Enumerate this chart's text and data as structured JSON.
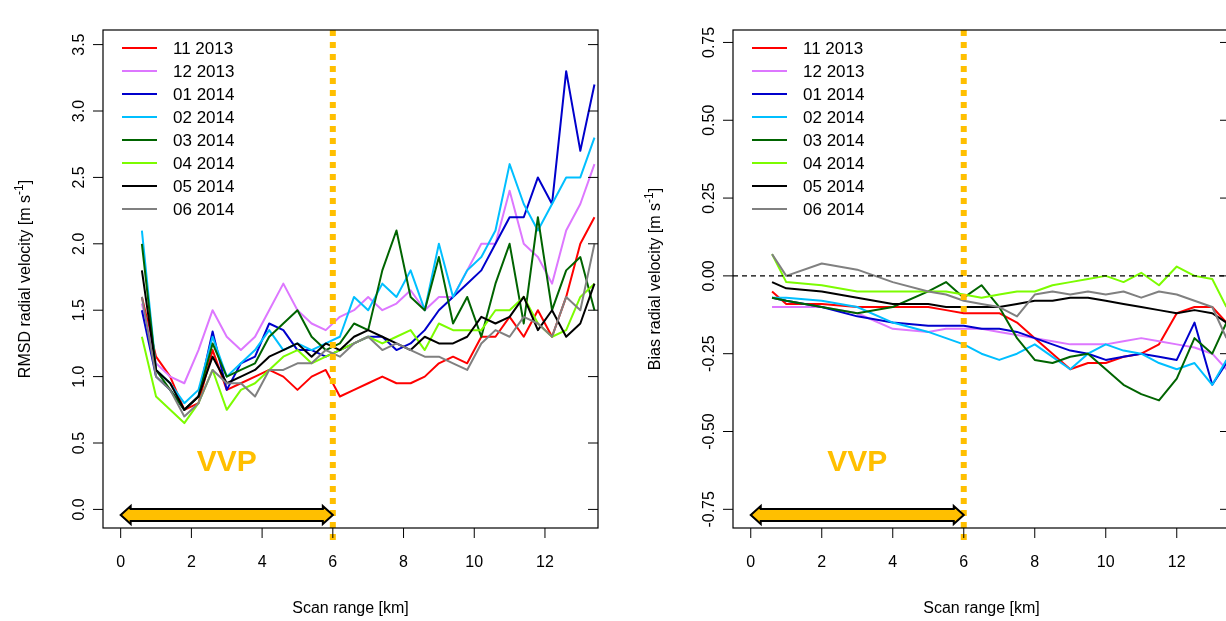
{
  "chart_data": [
    {
      "type": "line",
      "xlabel": "Scan range [km]",
      "ylabel": "RMSD radial velocity [m s$^{-1}$]",
      "xlim": [
        -0.5,
        13.5
      ],
      "ylim": [
        -0.14,
        3.61
      ],
      "xticks": [
        0,
        2,
        4,
        6,
        8,
        10,
        12
      ],
      "yticks": [
        {
          "value": 0,
          "label": "0.0"
        },
        {
          "value": 0.5,
          "label": "0.5"
        },
        {
          "value": 1,
          "label": "1.0"
        },
        {
          "value": 1.5,
          "label": "1.5"
        },
        {
          "value": 2,
          "label": "2.0"
        },
        {
          "value": 2.5,
          "label": "2.5"
        },
        {
          "value": 3,
          "label": "3.0"
        },
        {
          "value": 3.5,
          "label": "3.5"
        }
      ],
      "grid": false,
      "legend": "top left",
      "line_style": "solid",
      "marker": "none",
      "ref_lines": [
        {
          "axis": "x",
          "value": 6,
          "color": "#ffbf00",
          "line_style": "dotted"
        }
      ],
      "annotations": [
        "VVP"
      ],
      "x": [
        0.6,
        1.0,
        1.4,
        1.8,
        2.2,
        2.6,
        3.0,
        3.4,
        3.8,
        4.2,
        4.6,
        5.0,
        5.4,
        5.8,
        6.2,
        6.6,
        7.0,
        7.4,
        7.8,
        8.2,
        8.6,
        9.0,
        9.4,
        9.8,
        10.2,
        10.6,
        11.0,
        11.4,
        11.8,
        12.2,
        12.6,
        13.0,
        13.4
      ],
      "series": [
        {
          "name": "11 2013",
          "color": "#ff0000",
          "values": [
            1.6,
            1.15,
            1.0,
            0.75,
            0.8,
            1.2,
            0.9,
            0.95,
            1.0,
            1.05,
            1.0,
            0.9,
            1.0,
            1.05,
            0.85,
            0.9,
            0.95,
            1.0,
            0.95,
            0.95,
            1.0,
            1.1,
            1.15,
            1.1,
            1.3,
            1.3,
            1.45,
            1.3,
            1.5,
            1.3,
            1.6,
            2.0,
            2.2
          ]
        },
        {
          "name": "12 2013",
          "color": "#dd77ff",
          "values": [
            1.55,
            1.1,
            1.0,
            0.95,
            1.2,
            1.5,
            1.3,
            1.2,
            1.3,
            1.5,
            1.7,
            1.5,
            1.4,
            1.35,
            1.45,
            1.5,
            1.6,
            1.5,
            1.55,
            1.65,
            1.5,
            1.6,
            1.6,
            1.8,
            2.0,
            2.0,
            2.4,
            2.0,
            1.9,
            1.7,
            2.1,
            2.3,
            2.6
          ]
        },
        {
          "name": "01 2014",
          "color": "#0000cc",
          "values": [
            1.5,
            1.0,
            0.9,
            0.75,
            0.85,
            1.34,
            0.9,
            1.1,
            1.15,
            1.4,
            1.35,
            1.2,
            1.2,
            1.15,
            1.2,
            1.25,
            1.3,
            1.3,
            1.2,
            1.25,
            1.35,
            1.5,
            1.6,
            1.7,
            1.8,
            2.0,
            2.2,
            2.2,
            2.5,
            2.3,
            3.3,
            2.7,
            3.2
          ]
        },
        {
          "name": "02 2014",
          "color": "#00bfff",
          "values": [
            2.1,
            1.05,
            0.95,
            0.8,
            0.9,
            1.3,
            1.0,
            1.1,
            1.2,
            1.35,
            1.2,
            1.25,
            1.2,
            1.25,
            1.3,
            1.6,
            1.5,
            1.7,
            1.6,
            1.8,
            1.5,
            2.0,
            1.6,
            1.8,
            1.9,
            2.1,
            2.6,
            2.3,
            2.1,
            2.3,
            2.5,
            2.5,
            2.8
          ]
        },
        {
          "name": "03 2014",
          "color": "#006400",
          "values": [
            2.0,
            1.05,
            0.9,
            0.75,
            0.85,
            1.25,
            1.0,
            1.05,
            1.1,
            1.3,
            1.4,
            1.5,
            1.3,
            1.2,
            1.25,
            1.4,
            1.35,
            1.8,
            2.1,
            1.6,
            1.5,
            1.9,
            1.4,
            1.6,
            1.3,
            1.7,
            2.0,
            1.4,
            2.2,
            1.5,
            1.8,
            1.9,
            1.5
          ]
        },
        {
          "name": "04 2014",
          "color": "#7cfc00",
          "values": [
            1.3,
            0.85,
            0.75,
            0.65,
            0.8,
            1.05,
            0.75,
            0.9,
            0.95,
            1.05,
            1.15,
            1.2,
            1.1,
            1.15,
            1.2,
            1.25,
            1.3,
            1.25,
            1.3,
            1.35,
            1.2,
            1.4,
            1.35,
            1.35,
            1.35,
            1.5,
            1.5,
            1.6,
            1.4,
            1.3,
            1.35,
            1.6,
            1.7
          ]
        },
        {
          "name": "05 2014",
          "color": "#000000",
          "values": [
            1.8,
            1.05,
            0.95,
            0.75,
            0.85,
            1.15,
            0.95,
            1.0,
            1.05,
            1.15,
            1.2,
            1.25,
            1.15,
            1.25,
            1.2,
            1.3,
            1.35,
            1.3,
            1.25,
            1.2,
            1.3,
            1.25,
            1.25,
            1.3,
            1.45,
            1.4,
            1.45,
            1.6,
            1.35,
            1.5,
            1.3,
            1.4,
            1.7
          ]
        },
        {
          "name": "06 2014",
          "color": "#808080",
          "values": [
            1.6,
            1.0,
            0.9,
            0.7,
            0.8,
            1.05,
            0.95,
            0.95,
            0.85,
            1.05,
            1.05,
            1.1,
            1.1,
            1.2,
            1.15,
            1.25,
            1.3,
            1.2,
            1.25,
            1.2,
            1.15,
            1.15,
            1.1,
            1.05,
            1.25,
            1.35,
            1.3,
            1.45,
            1.4,
            1.3,
            1.6,
            1.5,
            2.0
          ]
        }
      ]
    },
    {
      "type": "line",
      "xlabel": "Scan range [km]",
      "ylabel": "Bias radial velocity [m s$^{-1}$]",
      "xlim": [
        -0.5,
        13.5
      ],
      "ylim": [
        -0.81,
        0.79
      ],
      "xticks": [
        0,
        2,
        4,
        6,
        8,
        10,
        12
      ],
      "yticks": [
        {
          "value": -0.75,
          "label": "-0.75"
        },
        {
          "value": -0.5,
          "label": "-0.50"
        },
        {
          "value": -0.25,
          "label": "-0.25"
        },
        {
          "value": 0,
          "label": "0.00"
        },
        {
          "value": 0.25,
          "label": "0.25"
        },
        {
          "value": 0.5,
          "label": "0.50"
        },
        {
          "value": 0.75,
          "label": "0.75"
        }
      ],
      "grid": false,
      "legend": "top left",
      "line_style": "solid",
      "marker": "none",
      "ref_lines": [
        {
          "axis": "x",
          "value": 6,
          "color": "#ffbf00",
          "line_style": "dotted"
        },
        {
          "axis": "y",
          "value": 0,
          "color": "#000000",
          "line_style": "dashed"
        }
      ],
      "annotations": [
        "VVP"
      ],
      "x": [
        0.6,
        1,
        2,
        3,
        4,
        5,
        5.5,
        6,
        6.5,
        7,
        7.5,
        8,
        8.5,
        9,
        9.5,
        10,
        10.5,
        11,
        11.5,
        12,
        12.5,
        13,
        13.4
      ],
      "series": [
        {
          "name": "11 2013",
          "color": "#ff0000",
          "values": [
            -0.05,
            -0.09,
            -0.09,
            -0.1,
            -0.1,
            -0.1,
            -0.11,
            -0.12,
            -0.12,
            -0.12,
            -0.15,
            -0.2,
            -0.25,
            -0.3,
            -0.28,
            -0.28,
            -0.26,
            -0.25,
            -0.22,
            -0.12,
            -0.1,
            -0.1,
            -0.15
          ]
        },
        {
          "name": "12 2013",
          "color": "#dd77ff",
          "values": [
            -0.1,
            -0.1,
            -0.1,
            -0.12,
            -0.17,
            -0.18,
            -0.17,
            -0.17,
            -0.17,
            -0.18,
            -0.19,
            -0.2,
            -0.21,
            -0.22,
            -0.22,
            -0.22,
            -0.21,
            -0.2,
            -0.21,
            -0.22,
            -0.23,
            -0.25,
            -0.3
          ]
        },
        {
          "name": "01 2014",
          "color": "#0000cc",
          "values": [
            -0.07,
            -0.08,
            -0.1,
            -0.13,
            -0.15,
            -0.16,
            -0.16,
            -0.16,
            -0.17,
            -0.17,
            -0.18,
            -0.2,
            -0.22,
            -0.24,
            -0.25,
            -0.27,
            -0.26,
            -0.25,
            -0.26,
            -0.27,
            -0.15,
            -0.35,
            -0.28
          ]
        },
        {
          "name": "02 2014",
          "color": "#00bfff",
          "values": [
            -0.07,
            -0.07,
            -0.08,
            -0.1,
            -0.15,
            -0.18,
            -0.2,
            -0.22,
            -0.25,
            -0.27,
            -0.25,
            -0.22,
            -0.26,
            -0.3,
            -0.25,
            -0.22,
            -0.24,
            -0.25,
            -0.28,
            -0.3,
            -0.28,
            -0.35,
            -0.27
          ]
        },
        {
          "name": "03 2014",
          "color": "#006400",
          "values": [
            -0.07,
            -0.08,
            -0.1,
            -0.12,
            -0.1,
            -0.05,
            -0.02,
            -0.07,
            -0.03,
            -0.1,
            -0.2,
            -0.27,
            -0.28,
            -0.26,
            -0.25,
            -0.3,
            -0.35,
            -0.38,
            -0.4,
            -0.33,
            -0.2,
            -0.25,
            -0.15
          ]
        },
        {
          "name": "04 2014",
          "color": "#7cfc00",
          "values": [
            0.07,
            -0.02,
            -0.03,
            -0.05,
            -0.05,
            -0.05,
            -0.05,
            -0.06,
            -0.07,
            -0.06,
            -0.05,
            -0.05,
            -0.03,
            -0.02,
            -0.01,
            0.0,
            -0.02,
            0.01,
            -0.03,
            0.03,
            0.0,
            -0.01,
            -0.1
          ]
        },
        {
          "name": "05 2014",
          "color": "#000000",
          "values": [
            -0.02,
            -0.04,
            -0.05,
            -0.07,
            -0.09,
            -0.09,
            -0.1,
            -0.1,
            -0.1,
            -0.1,
            -0.09,
            -0.08,
            -0.08,
            -0.07,
            -0.07,
            -0.08,
            -0.09,
            -0.1,
            -0.11,
            -0.12,
            -0.11,
            -0.12,
            -0.15
          ]
        },
        {
          "name": "06 2014",
          "color": "#808080",
          "values": [
            0.07,
            0.0,
            0.04,
            0.02,
            -0.02,
            -0.05,
            -0.06,
            -0.08,
            -0.09,
            -0.1,
            -0.13,
            -0.06,
            -0.05,
            -0.06,
            -0.05,
            -0.06,
            -0.05,
            -0.07,
            -0.05,
            -0.06,
            -0.08,
            -0.1,
            -0.2
          ]
        }
      ]
    }
  ]
}
